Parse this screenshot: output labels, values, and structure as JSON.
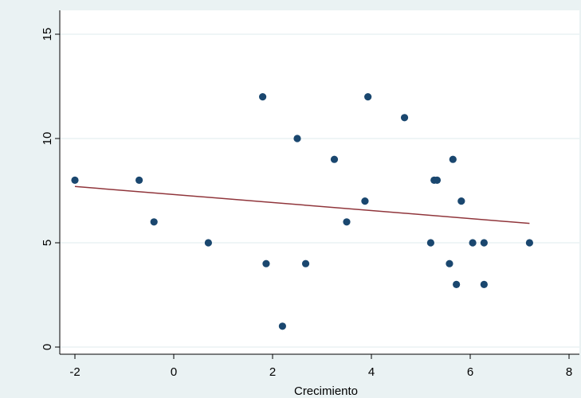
{
  "chart_data": {
    "type": "scatter",
    "title": "",
    "xlabel": "Crecimiento",
    "ylabel": "",
    "xlim": [
      -2,
      8
    ],
    "ylim": [
      0,
      15
    ],
    "xticks": [
      -2,
      0,
      2,
      4,
      6,
      8
    ],
    "yticks": [
      0,
      5,
      10,
      15
    ],
    "grid": true,
    "colors": {
      "points": "#1a476f",
      "fit": "#90353b",
      "background": "#eaf2f3"
    },
    "series": [
      {
        "x": [
          -2.0,
          -0.7,
          -0.4,
          0.7,
          1.8,
          1.87,
          2.2,
          2.5,
          2.67,
          3.25,
          3.5,
          3.87,
          3.93,
          4.67,
          5.2,
          5.27,
          5.33,
          5.58,
          5.65,
          5.72,
          5.82,
          6.05,
          6.28,
          6.28,
          7.2
        ],
        "y": [
          8,
          8,
          6,
          5,
          12,
          4,
          1,
          10,
          4,
          9,
          6,
          7,
          12,
          11,
          5,
          8,
          8,
          4,
          9,
          3,
          7,
          5,
          5,
          3,
          5
        ]
      }
    ],
    "fit_line": {
      "x": [
        -2.0,
        7.2
      ],
      "y": [
        7.7,
        5.93
      ]
    }
  }
}
